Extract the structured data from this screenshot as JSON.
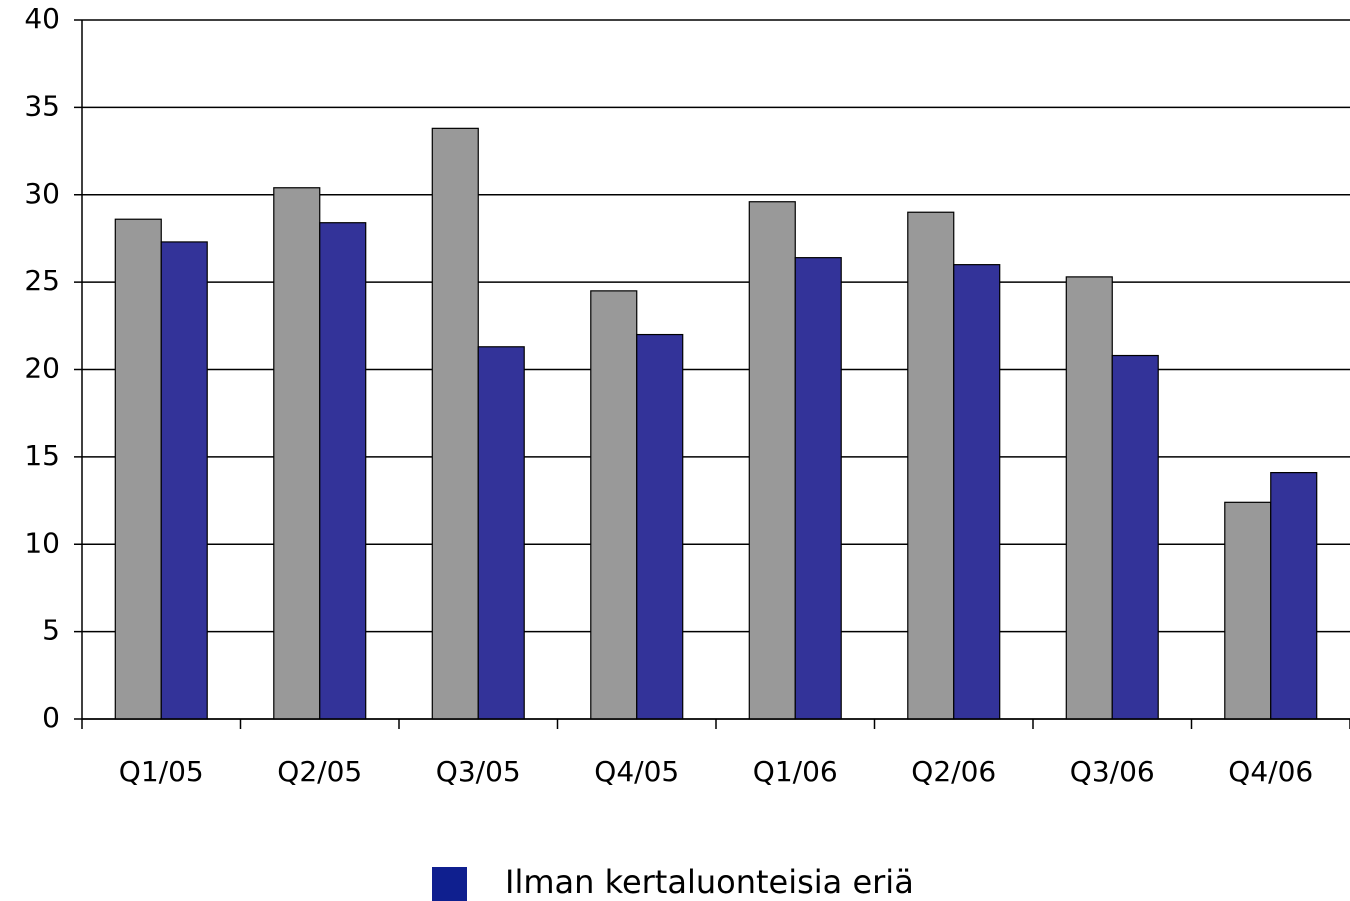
{
  "chart_data": {
    "type": "bar",
    "categories": [
      "Q1/05",
      "Q2/05",
      "Q3/05",
      "Q4/05",
      "Q1/06",
      "Q2/06",
      "Q3/06",
      "Q4/06"
    ],
    "series": [
      {
        "color": "#999999",
        "values": [
          28.6,
          30.4,
          33.8,
          24.5,
          29.6,
          29.0,
          25.3,
          12.4
        ]
      },
      {
        "name": "Ilman kertaluonteisia eriä",
        "color": "#333399",
        "values": [
          27.3,
          28.4,
          21.3,
          22.0,
          26.4,
          26.0,
          20.8,
          14.1
        ]
      }
    ],
    "legend_color": "#0f1f8f",
    "ylim": [
      0,
      40
    ],
    "yticks": [
      0,
      5,
      10,
      15,
      20,
      25,
      30,
      35,
      40
    ],
    "grid": true
  }
}
